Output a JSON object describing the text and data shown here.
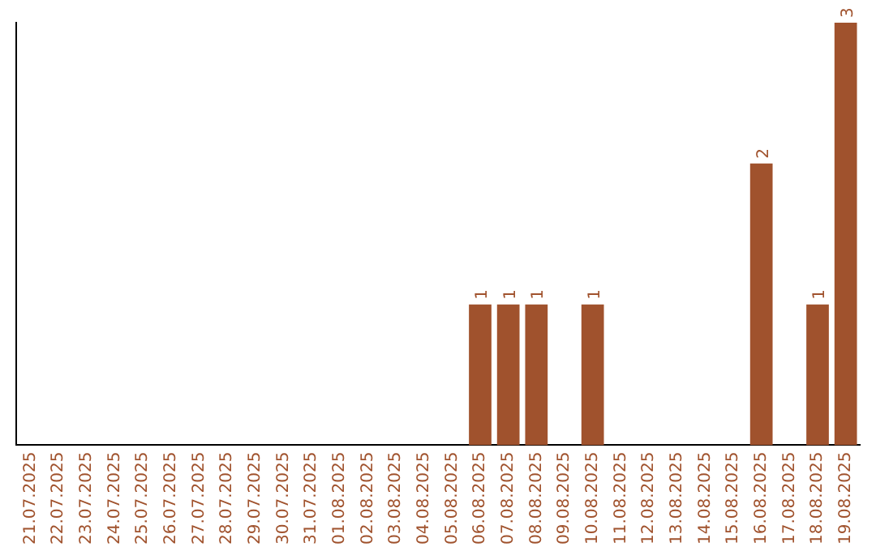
{
  "chart_data": {
    "type": "bar",
    "categories": [
      "21.07.2025",
      "22.07.2025",
      "23.07.2025",
      "24.07.2025",
      "25.07.2025",
      "26.07.2025",
      "27.07.2025",
      "28.07.2025",
      "29.07.2025",
      "30.07.2025",
      "31.07.2025",
      "01.08.2025",
      "02.08.2025",
      "03.08.2025",
      "04.08.2025",
      "05.08.2025",
      "06.08.2025",
      "07.08.2025",
      "08.08.2025",
      "09.08.2025",
      "10.08.2025",
      "11.08.2025",
      "12.08.2025",
      "13.08.2025",
      "14.08.2025",
      "15.08.2025",
      "16.08.2025",
      "17.08.2025",
      "18.08.2025",
      "19.08.2025"
    ],
    "values": [
      null,
      null,
      null,
      null,
      null,
      null,
      null,
      null,
      null,
      null,
      null,
      null,
      null,
      null,
      null,
      null,
      1,
      1,
      1,
      null,
      1,
      null,
      null,
      null,
      null,
      null,
      2,
      null,
      1,
      3
    ],
    "value_labels": [
      null,
      null,
      null,
      null,
      null,
      null,
      null,
      null,
      null,
      null,
      null,
      null,
      null,
      null,
      null,
      null,
      "1",
      "1",
      "1",
      null,
      "1",
      null,
      null,
      null,
      null,
      null,
      "2",
      null,
      "1",
      "3"
    ],
    "color": "#a0522d",
    "grid": false,
    "legend": false,
    "tick_labels": "x"
  }
}
